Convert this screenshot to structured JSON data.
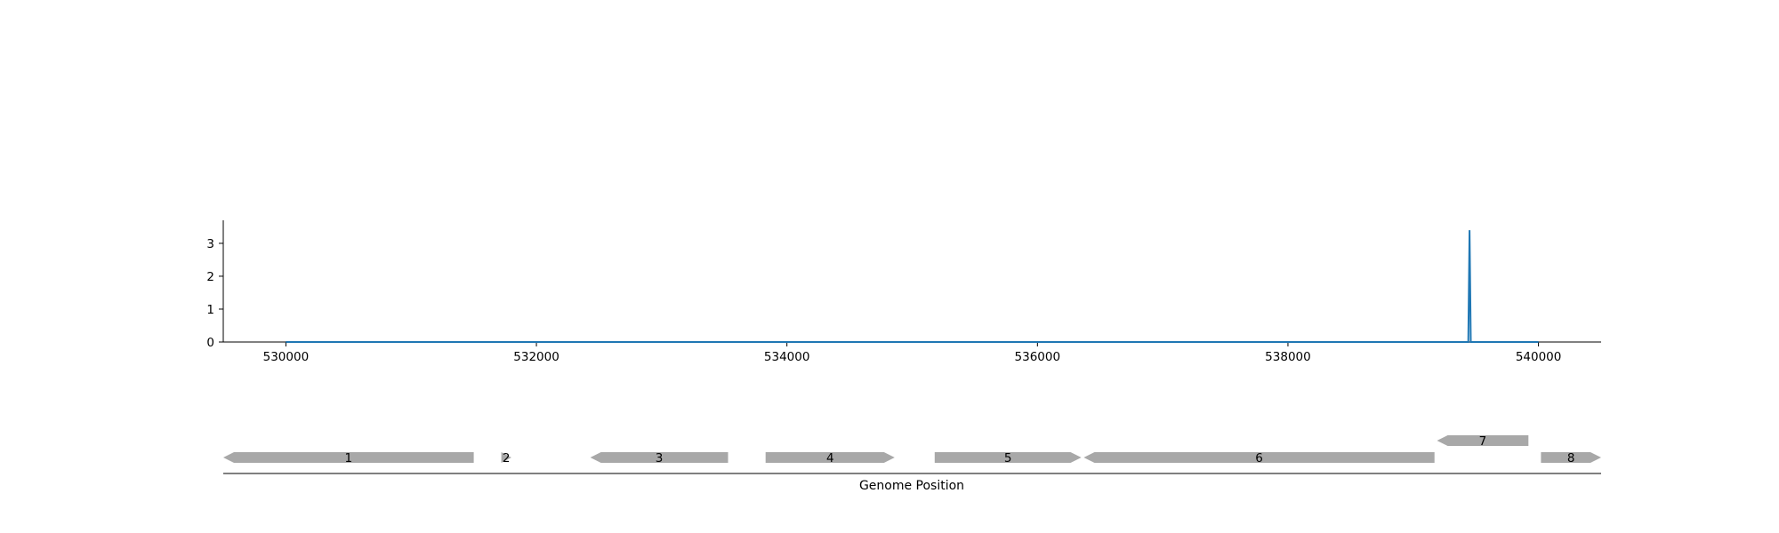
{
  "chart_data": [
    {
      "type": "line",
      "title": "",
      "xlabel": "",
      "ylabel": "",
      "xlim": [
        529500,
        540500
      ],
      "ylim": [
        0,
        3.7
      ],
      "xticks": [
        530000,
        532000,
        534000,
        536000,
        538000,
        540000
      ],
      "yticks": [
        0,
        1,
        2,
        3
      ],
      "grid": false,
      "color": "#1f77b4",
      "series": [
        {
          "x": [
            530000,
            539440,
            539450,
            539460,
            540000
          ],
          "y": [
            0,
            0,
            3.4,
            0,
            0
          ]
        }
      ]
    },
    {
      "type": "gene-track",
      "xlabel": "Genome Position",
      "xlim": [
        529500,
        540500
      ],
      "color": "#a8a8a8",
      "genes": [
        {
          "label": "1",
          "start": 529500,
          "end": 531500,
          "strand": -1,
          "row": 0
        },
        {
          "label": "2",
          "start": 531720,
          "end": 531800,
          "strand": 1,
          "row": 0
        },
        {
          "label": "3",
          "start": 532430,
          "end": 533530,
          "strand": -1,
          "row": 0
        },
        {
          "label": "4",
          "start": 533830,
          "end": 534860,
          "strand": 1,
          "row": 0
        },
        {
          "label": "5",
          "start": 535180,
          "end": 536350,
          "strand": 1,
          "row": 0
        },
        {
          "label": "6",
          "start": 536370,
          "end": 539170,
          "strand": -1,
          "row": 0
        },
        {
          "label": "7",
          "start": 539190,
          "end": 539920,
          "strand": -1,
          "row": 1
        },
        {
          "label": "8",
          "start": 540020,
          "end": 540500,
          "strand": 1,
          "row": 0
        }
      ]
    }
  ]
}
